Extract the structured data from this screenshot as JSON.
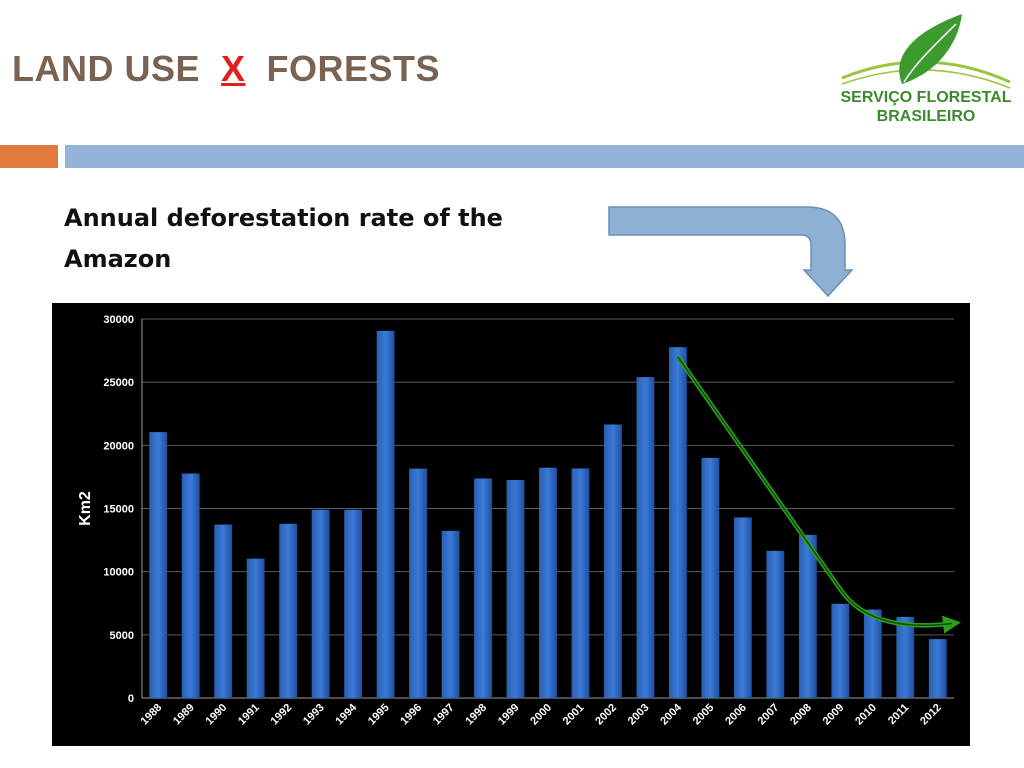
{
  "header": {
    "title_left": "LAND USE  ",
    "title_x": "X",
    "title_right": "  FORESTS"
  },
  "logo": {
    "line1": "SERVIÇO FLORESTAL",
    "line2": "BRASILEIRO",
    "colors": {
      "leaf": "#3d9a2e",
      "arc": "#9bc53d"
    }
  },
  "subtitle": "Annual deforestation rate of the Amazon",
  "colors": {
    "title": "#7a6352",
    "x_mark": "#e0201b",
    "accent_orange": "#e07b3c",
    "accent_blue": "#95b3d7",
    "bar": "#3a7ad8",
    "trend_arrow": "#2e9e1f",
    "callout_arrow": "#8db0d4"
  },
  "chart_data": {
    "type": "bar",
    "title": "",
    "xlabel": "",
    "ylabel": "Km2",
    "ylim": [
      0,
      30000
    ],
    "yticks": [
      0,
      5000,
      10000,
      15000,
      20000,
      25000,
      30000
    ],
    "grid": true,
    "categories": [
      "1988",
      "1989",
      "1990",
      "1991",
      "1992",
      "1993",
      "1994",
      "1995",
      "1996",
      "1997",
      "1998",
      "1999",
      "2000",
      "2001",
      "2002",
      "2003",
      "2004",
      "2005",
      "2006",
      "2007",
      "2008",
      "2009",
      "2010",
      "2011",
      "2012"
    ],
    "values": [
      21050,
      17770,
      13730,
      11030,
      13790,
      14900,
      14900,
      29060,
      18160,
      13230,
      17380,
      17260,
      18230,
      18170,
      21650,
      25400,
      27770,
      19010,
      14290,
      11650,
      12910,
      7460,
      7000,
      6420,
      4660
    ],
    "annotation": "downward trend arrow from 2004 to 2012"
  }
}
